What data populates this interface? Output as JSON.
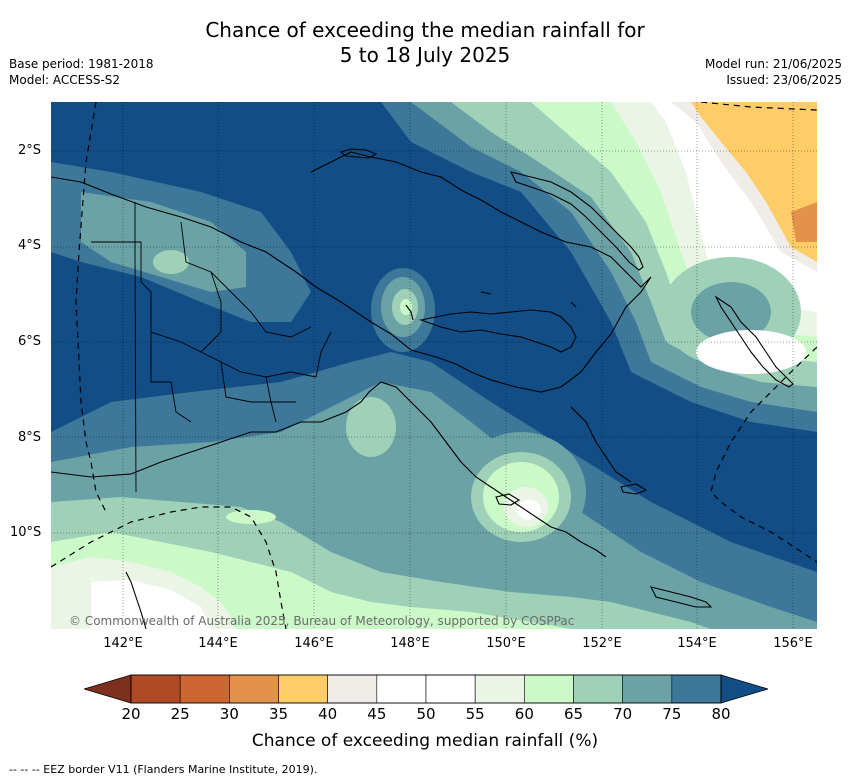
{
  "title": {
    "line1": "Chance of exceeding the median rainfall for",
    "line2": "5 to 18 July 2025"
  },
  "meta_left": {
    "base_period": "Base period: 1981-2018",
    "model": "Model: ACCESS-S2"
  },
  "meta_right": {
    "model_run": "Model run: 21/06/2025",
    "issued": "Issued: 23/06/2025"
  },
  "map": {
    "region": "Papua New Guinea",
    "latitude_labels": [
      "2°S",
      "4°S",
      "6°S",
      "8°S",
      "10°S"
    ],
    "longitude_labels": [
      "142°E",
      "144°E",
      "146°E",
      "148°E",
      "150°E",
      "152°E",
      "154°E",
      "156°E"
    ],
    "copyright": "© Commonwealth of Australia 2025, Bureau of Meteorology, supported by COSPPac",
    "colors": {
      "very_wet": "#124d86",
      "wet": "#3d7799",
      "moderate": "#6ba2a6",
      "light": "#9fd1b9",
      "neutral_green": "#cbfac8",
      "pale": "#eaf5e6",
      "white": "#ffffff",
      "dry_light": "#f0ede8",
      "dry": "#ffcd67",
      "drier": "#e2924b"
    }
  },
  "colorbar": {
    "ticks": [
      "20",
      "25",
      "30",
      "35",
      "40",
      "45",
      "50",
      "55",
      "60",
      "65",
      "70",
      "75",
      "80"
    ],
    "colors": [
      "#af4a26",
      "#cd6631",
      "#e2924b",
      "#ffcd67",
      "#f0ede8",
      "#ffffff",
      "#ffffff",
      "#eaf5e6",
      "#cbfac8",
      "#9fd1b9",
      "#6ba2a6",
      "#3d7799"
    ],
    "under_color": "#7c301d",
    "over_color": "#124d86",
    "label": "Chance of exceeding median rainfall (%)"
  },
  "footnote": "-- -- -- EEZ border V11 (Flanders Marine Institute, 2019)."
}
